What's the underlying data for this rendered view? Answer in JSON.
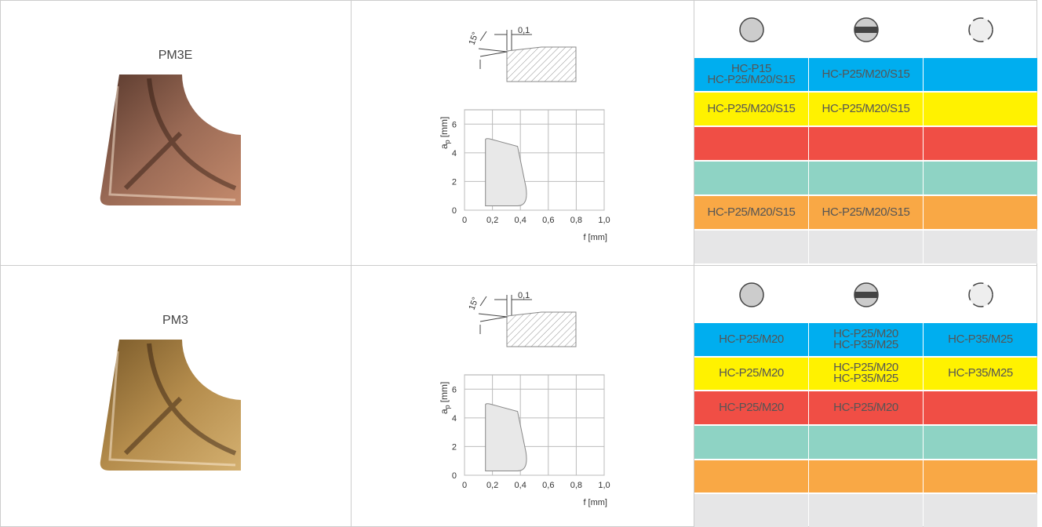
{
  "band_colors": [
    "#00aeef",
    "#fff200",
    "#f04e45",
    "#8ed3c4",
    "#f9a845",
    "#e6e6e7"
  ],
  "rows": [
    {
      "name": "PM3E",
      "insert_tone": "copper",
      "diagram": {
        "angle": "15°",
        "offset": "0,1"
      },
      "chart": {
        "ylabel": "a",
        "ylabel_sub": "p",
        "ylabel_unit": "[mm]",
        "xlabel": "f [mm]",
        "xlim": [
          0,
          1
        ],
        "ylim": [
          0,
          7
        ],
        "xticks": [
          0,
          {
            "value": 0.2,
            "label": "0,2"
          },
          {
            "value": 0.4,
            "label": "0,4"
          },
          {
            "value": 0.6,
            "label": "0,6"
          },
          {
            "value": 0.8,
            "label": "0,8"
          },
          {
            "value": 1,
            "label": "1,0"
          }
        ],
        "yticks": [
          0,
          2,
          4,
          6
        ]
      },
      "grades": [
        [
          [
            "HC-P15",
            "HC-P25/M20/S15"
          ],
          "HC-P25/M20/S15",
          null
        ],
        [
          "HC-P25/M20/S15",
          "HC-P25/M20/S15",
          null
        ],
        [
          null,
          null,
          null
        ],
        [
          null,
          null,
          null
        ],
        [
          "HC-P25/M20/S15",
          "HC-P25/M20/S15",
          null
        ],
        [
          null,
          null,
          null
        ]
      ]
    },
    {
      "name": "PM3",
      "insert_tone": "bronze",
      "diagram": {
        "angle": "15°",
        "offset": "0,1"
      },
      "chart": {
        "ylabel": "a",
        "ylabel_sub": "p",
        "ylabel_unit": "[mm]",
        "xlabel": "f [mm]",
        "xlim": [
          0,
          1
        ],
        "ylim": [
          0,
          7
        ],
        "xticks": [
          0,
          {
            "value": 0.2,
            "label": "0,2"
          },
          {
            "value": 0.4,
            "label": "0,4"
          },
          {
            "value": 0.6,
            "label": "0,6"
          },
          {
            "value": 0.8,
            "label": "0,8"
          },
          {
            "value": 1,
            "label": "1,0"
          }
        ],
        "yticks": [
          0,
          2,
          4,
          6
        ]
      },
      "grades": [
        [
          "HC-P25/M20",
          [
            "HC-P25/M20",
            "HC-P35/M25"
          ],
          "HC-P35/M25"
        ],
        [
          "HC-P25/M20",
          [
            "HC-P25/M20",
            "HC-P35/M25"
          ],
          "HC-P35/M25"
        ],
        [
          "HC-P25/M20",
          "HC-P25/M20",
          null
        ],
        [
          null,
          null,
          null
        ],
        [
          null,
          null,
          null
        ],
        [
          null,
          null,
          null
        ]
      ]
    }
  ]
}
